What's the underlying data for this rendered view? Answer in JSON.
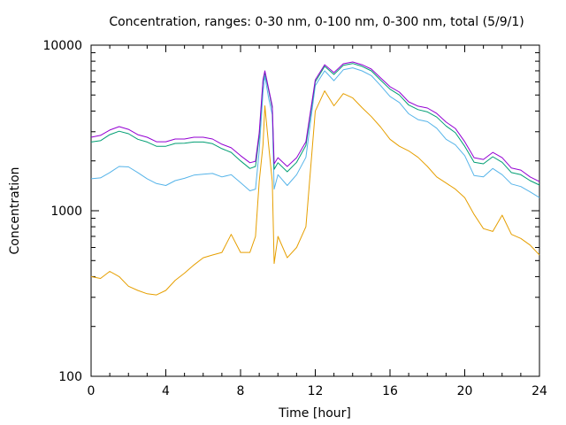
{
  "chart_data": {
    "type": "line",
    "title": "Concentration, ranges: 0-30 nm, 0-100 nm, 0-300 nm, total (5/9/1)",
    "xlabel": "Time [hour]",
    "ylabel": "Concentration",
    "xlim": [
      0,
      24
    ],
    "ylim": [
      100,
      10000
    ],
    "yscale": "log",
    "xticks": [
      0,
      4,
      8,
      12,
      16,
      20,
      24
    ],
    "xtick_labels": [
      "0",
      "4",
      "8",
      "12",
      "16",
      "20",
      "24"
    ],
    "yticks": [
      100,
      1000,
      10000
    ],
    "ytick_labels": [
      "100",
      "1000",
      "10000"
    ],
    "grid": false,
    "legend": "none",
    "x": [
      0,
      0.5,
      1,
      1.5,
      2,
      2.5,
      3,
      3.5,
      4,
      4.5,
      5,
      5.5,
      6,
      6.5,
      7,
      7.5,
      8,
      8.5,
      8.8,
      9,
      9.2,
      9.3,
      9.5,
      9.7,
      9.8,
      10,
      10.5,
      11,
      11.5,
      12,
      12.5,
      13,
      13.5,
      14,
      14.5,
      15,
      15.5,
      16,
      16.5,
      17,
      17.5,
      18,
      18.5,
      19,
      19.5,
      20,
      20.5,
      21,
      21.5,
      22,
      22.5,
      23,
      23.5,
      24
    ],
    "series": [
      {
        "name": "total",
        "color": "#9400d3",
        "values": [
          2780,
          2850,
          3070,
          3220,
          3100,
          2880,
          2780,
          2610,
          2610,
          2710,
          2710,
          2780,
          2780,
          2710,
          2520,
          2400,
          2150,
          1950,
          1990,
          2960,
          6180,
          7000,
          5470,
          4280,
          1920,
          2090,
          1850,
          2090,
          2610,
          6180,
          7620,
          6830,
          7720,
          7910,
          7620,
          7170,
          6340,
          5610,
          5210,
          4550,
          4280,
          4170,
          3870,
          3430,
          3140,
          2610,
          2090,
          2040,
          2250,
          2090,
          1810,
          1760,
          1600,
          1500
        ]
      },
      {
        "name": "0-300 nm",
        "color": "#009e73",
        "values": [
          2600,
          2650,
          2880,
          3020,
          2920,
          2700,
          2600,
          2450,
          2450,
          2550,
          2560,
          2600,
          2600,
          2540,
          2370,
          2250,
          2000,
          1800,
          1850,
          2800,
          6000,
          6850,
          5350,
          4150,
          1780,
          1950,
          1720,
          1960,
          2480,
          6000,
          7450,
          6650,
          7550,
          7750,
          7450,
          7000,
          6150,
          5420,
          5000,
          4350,
          4080,
          3950,
          3680,
          3250,
          2960,
          2450,
          1960,
          1920,
          2120,
          1960,
          1700,
          1650,
          1520,
          1430
        ]
      },
      {
        "name": "0-100 nm",
        "color": "#56b4e9",
        "values": [
          1560,
          1580,
          1700,
          1850,
          1840,
          1700,
          1560,
          1460,
          1420,
          1520,
          1570,
          1640,
          1660,
          1680,
          1600,
          1650,
          1480,
          1320,
          1350,
          2300,
          5200,
          6500,
          4800,
          3800,
          1350,
          1650,
          1420,
          1650,
          2100,
          5700,
          7000,
          6100,
          7100,
          7300,
          7000,
          6550,
          5700,
          4900,
          4500,
          3850,
          3550,
          3450,
          3150,
          2700,
          2500,
          2150,
          1630,
          1600,
          1800,
          1650,
          1450,
          1400,
          1300,
          1200
        ]
      },
      {
        "name": "0-30 nm",
        "color": "#e69f00",
        "values": [
          400,
          390,
          430,
          400,
          350,
          330,
          315,
          310,
          330,
          380,
          420,
          470,
          520,
          540,
          560,
          720,
          560,
          560,
          700,
          1500,
          2500,
          4300,
          2500,
          1500,
          480,
          700,
          520,
          600,
          800,
          4000,
          5300,
          4300,
          5100,
          4800,
          4200,
          3700,
          3200,
          2700,
          2450,
          2300,
          2100,
          1850,
          1600,
          1470,
          1350,
          1200,
          950,
          780,
          750,
          940,
          720,
          680,
          620,
          540
        ]
      }
    ]
  }
}
